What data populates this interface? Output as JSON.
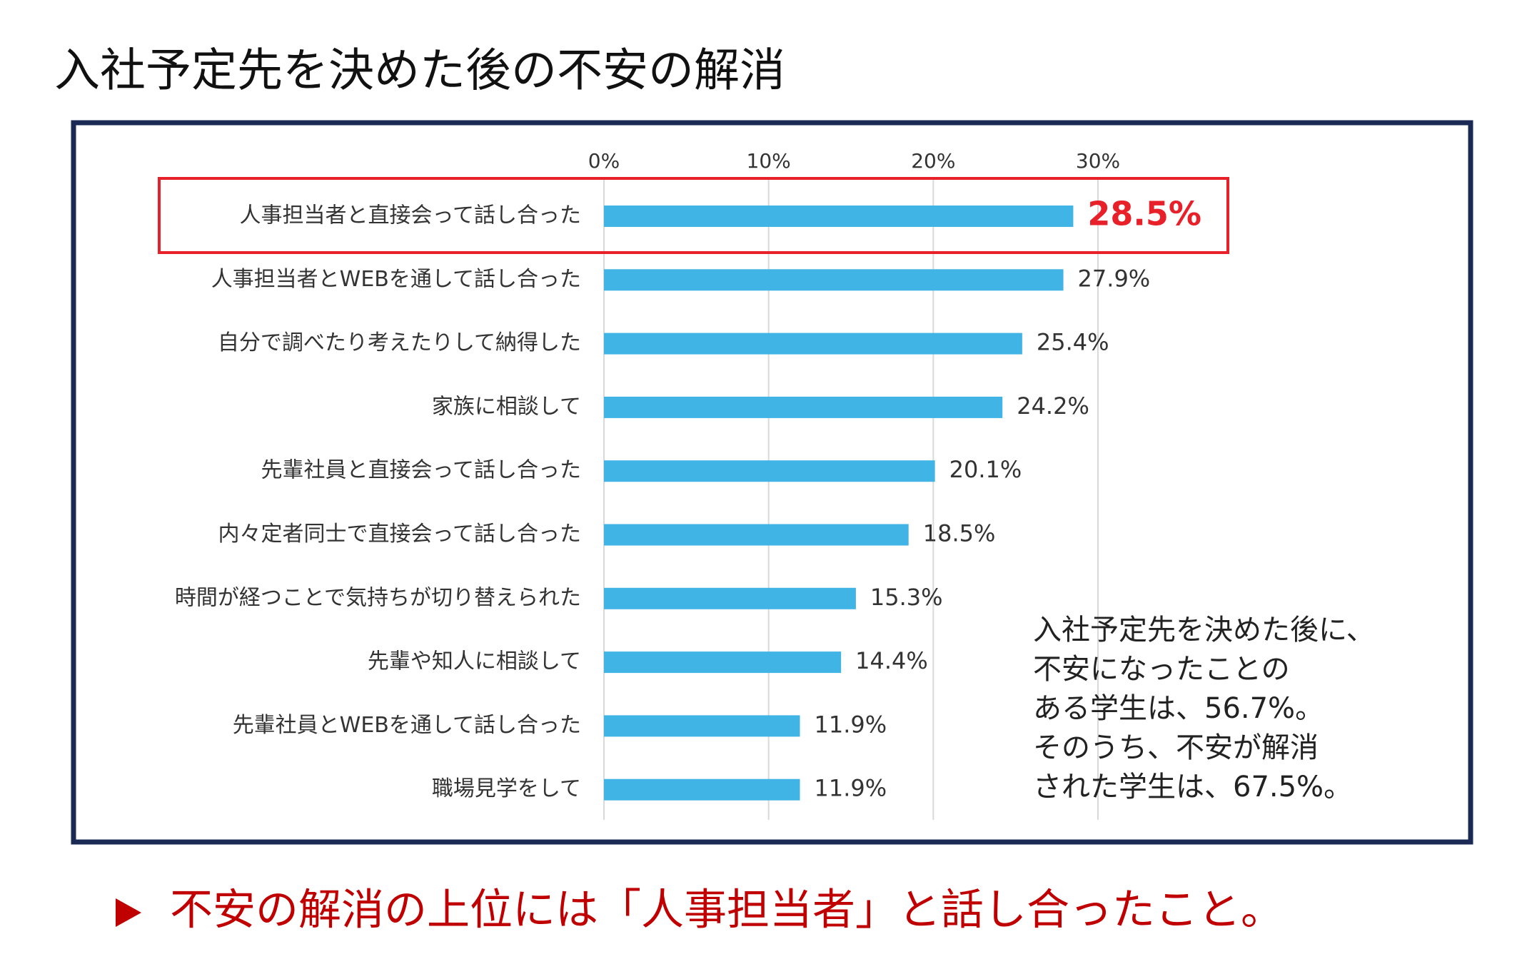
{
  "chart_data": {
    "type": "bar",
    "orientation": "horizontal",
    "title": "入社予定先を決めた後の不安の解消",
    "categories": [
      "人事担当者と直接会って話し合った",
      "人事担当者とWEBを通して話し合った",
      "自分で調べたり考えたりして納得した",
      "家族に相談して",
      "先輩社員と直接会って話し合った",
      "内々定者同士で直接会って話し合った",
      "時間が経つことで気持ちが切り替えられた",
      "先輩や知人に相談して",
      "先輩社員とWEBを通して話し合った",
      "職場見学をして"
    ],
    "values": [
      28.5,
      27.9,
      25.4,
      24.2,
      20.1,
      18.5,
      15.3,
      14.4,
      11.9,
      11.9
    ],
    "value_labels": [
      "28.5%",
      "27.9%",
      "25.4%",
      "24.2%",
      "20.1%",
      "18.5%",
      "15.3%",
      "14.4%",
      "11.9%",
      "11.9%"
    ],
    "color": "#41b4e6",
    "xlim": [
      0,
      30
    ],
    "xticks": [
      {
        "value": 0,
        "label": "0%"
      },
      {
        "value": 10,
        "label": "10%"
      },
      {
        "value": 20,
        "label": "20%"
      },
      {
        "value": 30,
        "label": "30%"
      }
    ],
    "grid": true,
    "annotation": [
      "入社予定先を決めた後に、",
      "不安になったことの",
      "ある学生は、56.7%。",
      "そのうち、不安が解消",
      "された学生は、67.5%。"
    ],
    "footer": "不安の解消の上位には「人事担当者」と話し合ったこと。"
  }
}
